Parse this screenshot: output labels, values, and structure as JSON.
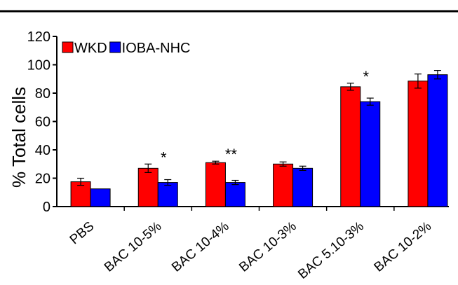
{
  "chart_data": {
    "type": "bar",
    "title": "",
    "xlabel": "",
    "ylabel": "% Total cells",
    "ylim": [
      0,
      120
    ],
    "yticks": [
      0,
      20,
      40,
      60,
      80,
      100,
      120
    ],
    "grid": false,
    "legend_position": "top-left",
    "categories": [
      "PBS",
      "BAC 10-5%",
      "BAC 10-4%",
      "BAC 10-3%",
      "BAC 5.10-3%",
      "BAC 10-2%"
    ],
    "series": [
      {
        "name": "WKD",
        "color": "#ff0000",
        "values": [
          17.5,
          27,
          31,
          30,
          84.5,
          88.5
        ],
        "errors": [
          2.5,
          3,
          1,
          1.5,
          2.5,
          5
        ]
      },
      {
        "name": "IOBA-NHC",
        "color": "#0000ff",
        "values": [
          12.5,
          17,
          17,
          27,
          74,
          93
        ],
        "errors": [
          0,
          2,
          1.5,
          1.5,
          2.5,
          3
        ]
      }
    ],
    "annotations": [
      {
        "category": "BAC 10-5%",
        "text": "*"
      },
      {
        "category": "BAC 10-4%",
        "text": "**"
      },
      {
        "category": "BAC 5.10-3%",
        "text": "*"
      }
    ]
  }
}
